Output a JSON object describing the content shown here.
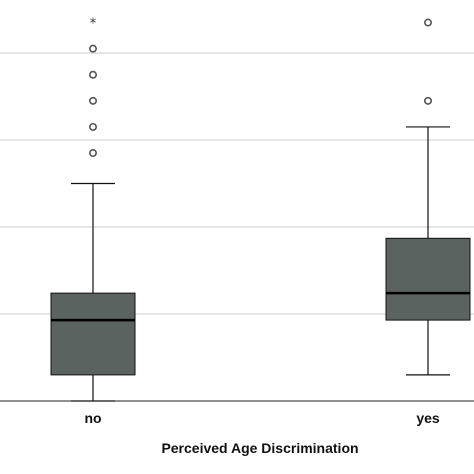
{
  "chart_data": {
    "type": "boxplot",
    "title": "",
    "xlabel": "Perceived Age Discrimination",
    "ylabel": "",
    "categories": [
      "no",
      "yes"
    ],
    "ylim": [
      0,
      4.6
    ],
    "gridlines": [
      0,
      1,
      2,
      3,
      4
    ],
    "grid": true,
    "colors": {
      "box": "#5a6360",
      "median": "#000000",
      "grid": "#cccccc",
      "outlier": "#555555"
    },
    "boxes": [
      {
        "category": "no",
        "whisker_low": 0,
        "q1": 0.3,
        "median": 0.93,
        "q3": 1.24,
        "whisker_high": 2.5,
        "outliers": [
          2.85,
          3.15,
          3.45,
          3.75,
          4.05
        ],
        "extremes": [
          4.35
        ]
      },
      {
        "category": "yes",
        "whisker_low": 0.3,
        "q1": 0.93,
        "median": 1.24,
        "q3": 1.87,
        "whisker_high": 3.15,
        "outliers": [
          3.45,
          4.35
        ],
        "extremes": []
      }
    ]
  }
}
